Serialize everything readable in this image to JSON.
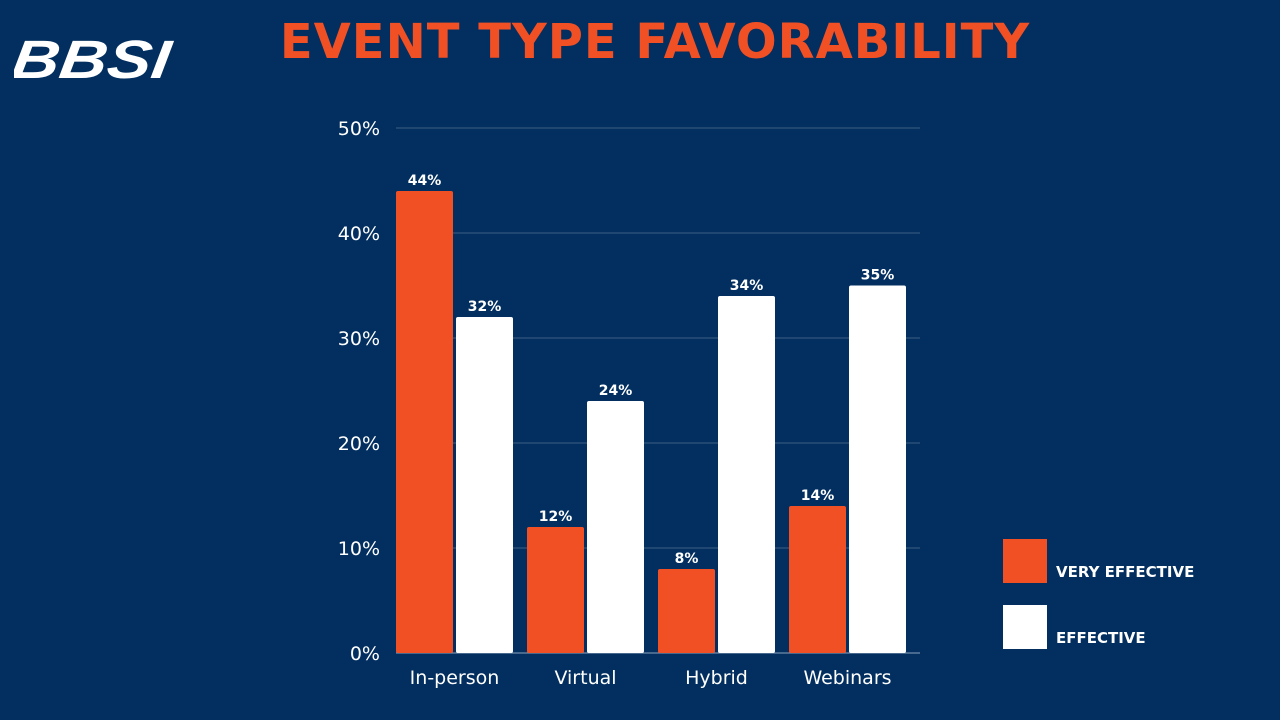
{
  "logo": {
    "text": "BBSI"
  },
  "colors": {
    "background": "#022f5f",
    "very_effective": "#f15025",
    "effective": "#ffffff",
    "grid": "#3d5f86"
  },
  "chart_data": {
    "type": "bar",
    "title": "EVENT TYPE FAVORABILITY",
    "categories": [
      "In-person",
      "Virtual",
      "Hybrid",
      "Webinars"
    ],
    "series": [
      {
        "name": "VERY EFFECTIVE",
        "values": [
          44,
          12,
          8,
          14
        ],
        "labels": [
          "44%",
          "12%",
          "8%",
          "14%"
        ]
      },
      {
        "name": "EFFECTIVE",
        "values": [
          32,
          24,
          34,
          35
        ],
        "labels": [
          "32%",
          "24%",
          "34%",
          "35%"
        ]
      }
    ],
    "yticks": [
      "0%",
      "10%",
      "20%",
      "30%",
      "40%",
      "50%"
    ],
    "ylim": [
      0,
      50
    ],
    "xlabel": "",
    "ylabel": "",
    "grid": true,
    "legend_position": "bottom-right"
  }
}
